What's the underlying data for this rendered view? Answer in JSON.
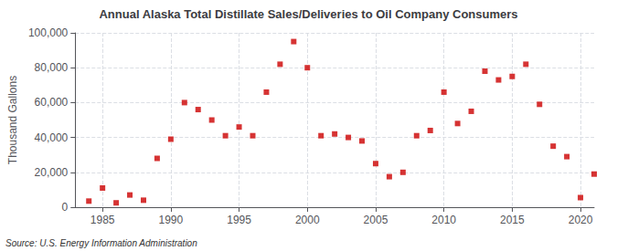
{
  "chart_data": {
    "type": "scatter",
    "title": "Annual Alaska Total Distillate Sales/Deliveries to Oil Company Consumers",
    "ylabel": "Thousand Gallons",
    "annotations": [
      "Source: U.S. Energy Information Administration"
    ],
    "color": "#cc0000",
    "marker": "square",
    "grid": true,
    "xlim": [
      1983,
      2021
    ],
    "ylim": [
      0,
      100000
    ],
    "xticks": [
      1985,
      1990,
      1995,
      2000,
      2005,
      2010,
      2015,
      2020
    ],
    "yticks": [
      0,
      {
        "value": 20000,
        "label": "20,000"
      },
      {
        "value": 40000,
        "label": "40,000"
      },
      {
        "value": 60000,
        "label": "60,000"
      },
      {
        "value": 80000,
        "label": "80,000"
      },
      {
        "value": 100000,
        "label": "100,000"
      }
    ],
    "x": [
      1984,
      1985,
      1986,
      1987,
      1988,
      1989,
      1990,
      1991,
      1992,
      1993,
      1994,
      1995,
      1996,
      1997,
      1998,
      1999,
      2000,
      2001,
      2002,
      2003,
      2004,
      2005,
      2006,
      2007,
      2008,
      2009,
      2010,
      2011,
      2012,
      2013,
      2014,
      2015,
      2016,
      2017,
      2018,
      2019,
      2020,
      2021
    ],
    "values": [
      3500,
      11000,
      2500,
      7000,
      4000,
      28000,
      39000,
      60000,
      56000,
      50000,
      41000,
      46000,
      41000,
      66000,
      82000,
      95000,
      80000,
      41000,
      42000,
      40000,
      38000,
      25000,
      17500,
      20000,
      41000,
      44000,
      66000,
      48000,
      55000,
      78000,
      73000,
      75000,
      82000,
      59000,
      35000,
      29000,
      5500,
      19000
    ]
  }
}
